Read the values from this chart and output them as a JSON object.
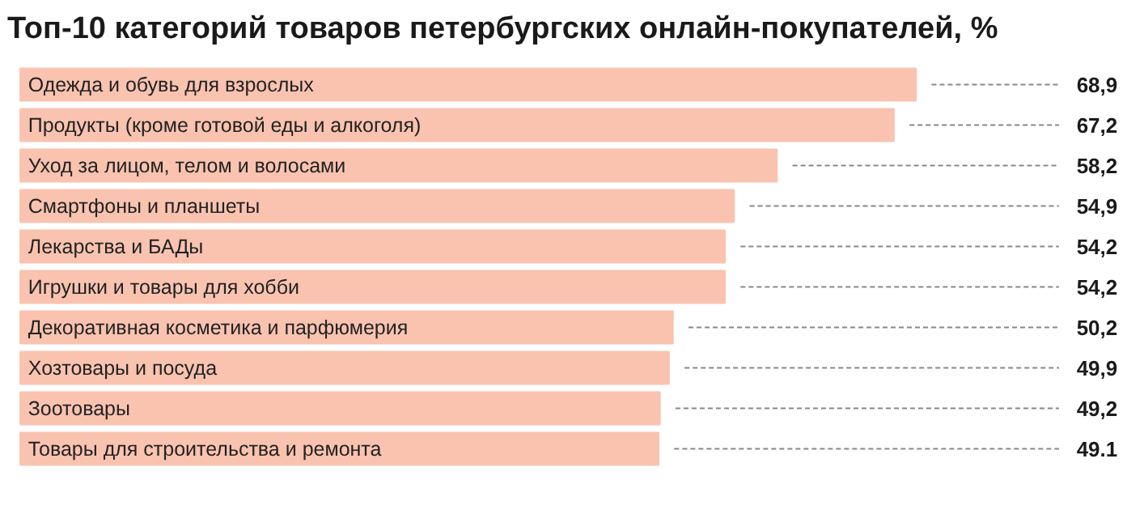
{
  "chart_data": {
    "type": "bar",
    "orientation": "horizontal",
    "title": "Топ-10 категорий товаров петербургских онлайн-покупателей, %",
    "categories": [
      "Одежда и обувь для взрослых",
      "Продукты (кроме готовой еды и алкоголя)",
      "Уход за лицом, телом и волосами",
      "Смартфоны и планшеты",
      "Лекарства и БАДы",
      "Игрушки и товары для хобби",
      "Декоративная косметика и парфюмерия",
      "Хозтовары и посуда",
      "Зоотовары",
      "Товары для строительства и ремонта"
    ],
    "values": [
      68.9,
      67.2,
      58.2,
      54.9,
      54.2,
      54.2,
      50.2,
      49.9,
      49.2,
      49.1
    ],
    "value_labels": [
      "68,9",
      "67,2",
      "58,2",
      "54,9",
      "54,2",
      "54,2",
      "50,2",
      "49,9",
      "49,2",
      "49.1"
    ],
    "color": "#f9c3b0"
  }
}
